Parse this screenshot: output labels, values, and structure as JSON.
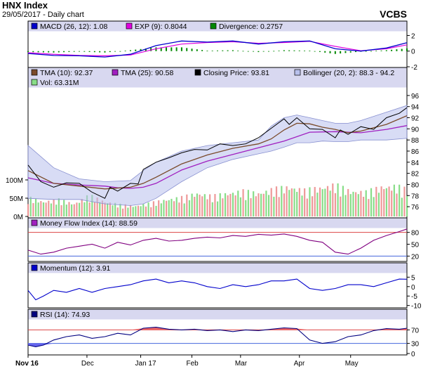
{
  "header": {
    "title": "HNX Index",
    "subtitle": "29/05/2017 - Daily chart",
    "brand": "VCBS"
  },
  "colors": {
    "panel_bg": "#ffffff",
    "legend_bg": "#d8d8f0",
    "border": "#000000",
    "macd": "#0000cc",
    "exp": "#e000e0",
    "divergence": "#008800",
    "tma10": "#7a4a2a",
    "tma25": "#a020c0",
    "close": "#000000",
    "bollinger": "#b8c0ec",
    "vol_up": "#88dd88",
    "vol_down": "#ee9999",
    "mfi": "#800080",
    "momentum": "#0000cc",
    "rsi": "#000080",
    "overbought": "#dd4444",
    "oversold": "#4466dd",
    "rsi_fill_hi": "#ee6666",
    "rsi_fill_lo": "#6666ee"
  },
  "xaxis": {
    "labels": [
      {
        "text": "Nov 16",
        "day": 0
      },
      {
        "text": "Dec",
        "day": 23
      },
      {
        "text": "Jan 17",
        "day": 44
      },
      {
        "text": "Feb",
        "day": 64
      },
      {
        "text": "Mar",
        "day": 83
      },
      {
        "text": "Apr",
        "day": 106
      },
      {
        "text": "May",
        "day": 126
      }
    ]
  },
  "chart_data": [
    {
      "panel": "macd",
      "type": "line",
      "legend": [
        {
          "label": "MACD (26, 12): 1.08",
          "icon": "blue"
        },
        {
          "label": "EXP (9): 0.8044",
          "icon": "magenta"
        },
        {
          "label": "Divergence: 0.2757",
          "icon": "green"
        }
      ],
      "ylim": [
        -2,
        2.4
      ],
      "yticks": [
        2,
        0,
        -2
      ],
      "series": [
        {
          "key": "macd",
          "x": [
            0,
            10,
            20,
            30,
            40,
            50,
            60,
            70,
            80,
            90,
            100,
            110,
            120,
            130,
            140,
            148
          ],
          "y": [
            -0.3,
            -0.55,
            -0.6,
            -0.75,
            -0.4,
            0.7,
            1.3,
            1.15,
            1.3,
            0.9,
            1.2,
            1.3,
            0.3,
            0.0,
            0.4,
            1.08
          ]
        },
        {
          "key": "exp",
          "x": [
            0,
            10,
            20,
            30,
            40,
            50,
            60,
            70,
            80,
            90,
            100,
            110,
            120,
            130,
            140,
            148
          ],
          "y": [
            -0.2,
            -0.4,
            -0.55,
            -0.6,
            -0.5,
            0.3,
            0.9,
            1.1,
            1.2,
            1.0,
            1.1,
            1.25,
            0.6,
            0.05,
            0.3,
            0.8
          ]
        }
      ]
    },
    {
      "panel": "price",
      "type": "line",
      "legend": [
        {
          "label": "TMA (10): 92.37",
          "icon": "brown"
        },
        {
          "label": "TMA (25): 90.58",
          "icon": "purple"
        },
        {
          "label": "Closing Price: 93.81",
          "icon": "black"
        },
        {
          "label": "Bollinger (20, 2): 88.3 - 94.2",
          "icon": "band"
        },
        {
          "label": "Vol: 63.31M",
          "icon": "vol"
        }
      ],
      "ylim": [
        75,
        97.5
      ],
      "yticks": [
        96,
        94,
        92,
        90,
        88,
        86,
        84,
        82,
        80,
        78,
        76
      ],
      "vol_ticks": [
        {
          "label": "100M",
          "v": 100
        },
        {
          "label": "50M",
          "v": 50
        },
        {
          "label": "0M",
          "v": 0
        }
      ],
      "close": {
        "x": [
          0,
          5,
          10,
          15,
          20,
          25,
          30,
          32,
          35,
          40,
          43,
          45,
          50,
          55,
          60,
          65,
          70,
          75,
          80,
          85,
          90,
          95,
          100,
          102,
          105,
          110,
          115,
          120,
          122,
          125,
          130,
          135,
          140,
          145,
          148
        ],
        "y": [
          83.5,
          80.5,
          79.5,
          80.3,
          80.2,
          78.6,
          77.5,
          79.5,
          78.8,
          80.2,
          80.1,
          82.7,
          84.0,
          84.8,
          85.7,
          86.3,
          86.2,
          87.3,
          87.0,
          87.3,
          88.4,
          90.1,
          91.8,
          90.8,
          92.0,
          90.0,
          89.9,
          88.4,
          89.8,
          89.0,
          90.4,
          89.9,
          92.0,
          92.8,
          93.81
        ]
      },
      "tma10": {
        "x": [
          0,
          10,
          20,
          30,
          40,
          45,
          50,
          60,
          70,
          80,
          90,
          95,
          100,
          105,
          110,
          115,
          120,
          125,
          130,
          140,
          148
        ],
        "y": [
          82.5,
          80.2,
          79.7,
          79.2,
          79.5,
          80.2,
          81.3,
          83.7,
          85.3,
          86.5,
          87.3,
          88.2,
          89.8,
          91.0,
          90.9,
          90.3,
          89.9,
          89.3,
          89.6,
          90.8,
          92.37
        ]
      },
      "tma25": {
        "x": [
          0,
          10,
          20,
          30,
          35,
          40,
          45,
          50,
          60,
          70,
          80,
          90,
          100,
          110,
          120,
          130,
          140,
          148
        ],
        "y": [
          81.2,
          80.2,
          79.9,
          79.7,
          79.4,
          79.3,
          79.5,
          80.2,
          82.6,
          84.2,
          85.4,
          86.6,
          87.8,
          89.4,
          89.5,
          89.3,
          89.9,
          90.58
        ]
      },
      "boll_upper": {
        "x": [
          0,
          10,
          20,
          30,
          40,
          45,
          50,
          60,
          70,
          80,
          90,
          95,
          100,
          105,
          110,
          115,
          120,
          125,
          130,
          140,
          148
        ],
        "y": [
          87.0,
          83.0,
          81.0,
          80.5,
          80.7,
          82.5,
          84.0,
          86.0,
          87.0,
          87.5,
          88.0,
          90.5,
          92.0,
          92.5,
          92.0,
          91.5,
          91.0,
          91.0,
          91.5,
          93.0,
          94.2
        ]
      },
      "boll_lower": {
        "x": [
          0,
          10,
          20,
          30,
          40,
          45,
          50,
          60,
          70,
          80,
          90,
          95,
          100,
          105,
          110,
          115,
          120,
          125,
          130,
          140,
          148
        ],
        "y": [
          77.5,
          77.3,
          77.3,
          76.5,
          76.2,
          76.5,
          77.5,
          80.5,
          83.0,
          84.5,
          85.5,
          86.0,
          86.7,
          87.5,
          87.5,
          87.8,
          87.7,
          87.7,
          88.0,
          88.0,
          88.3
        ]
      },
      "volume": {
        "x": [
          0,
          6,
          12,
          18,
          24,
          30,
          36,
          42,
          48,
          54,
          60,
          66,
          72,
          78,
          84,
          90,
          96,
          102,
          108,
          114,
          120,
          126,
          132,
          138,
          144,
          148
        ],
        "y": [
          45,
          35,
          40,
          30,
          50,
          35,
          28,
          25,
          32,
          40,
          45,
          55,
          48,
          55,
          60,
          55,
          65,
          70,
          62,
          68,
          75,
          60,
          58,
          70,
          72,
          63.31
        ]
      }
    },
    {
      "panel": "mfi",
      "type": "line",
      "legend": [
        {
          "label": "Money Flow Index (14): 88.59",
          "icon": "purple"
        }
      ],
      "ylim": [
        10,
        90
      ],
      "yticks": [
        80,
        50,
        20
      ],
      "overbought": 80,
      "oversold": 20,
      "series": [
        {
          "key": "mfi",
          "x": [
            0,
            5,
            10,
            15,
            20,
            25,
            30,
            35,
            40,
            45,
            50,
            55,
            60,
            65,
            70,
            75,
            80,
            85,
            90,
            95,
            100,
            105,
            110,
            115,
            120,
            125,
            130,
            135,
            140,
            145,
            148
          ],
          "y": [
            35,
            25,
            30,
            40,
            45,
            50,
            40,
            55,
            48,
            60,
            65,
            58,
            60,
            65,
            68,
            66,
            72,
            70,
            75,
            73,
            76,
            70,
            60,
            55,
            30,
            25,
            40,
            60,
            72,
            82,
            88.59
          ]
        }
      ]
    },
    {
      "panel": "momentum",
      "type": "line",
      "legend": [
        {
          "label": "Momentum (12): 3.91",
          "icon": "blue"
        }
      ],
      "ylim": [
        -10.5,
        7
      ],
      "yticks": [
        5,
        0,
        -5,
        -10
      ],
      "series": [
        {
          "key": "momentum",
          "x": [
            0,
            3,
            6,
            10,
            15,
            20,
            25,
            30,
            35,
            40,
            45,
            50,
            55,
            60,
            65,
            70,
            75,
            80,
            85,
            90,
            95,
            100,
            105,
            110,
            115,
            120,
            125,
            130,
            135,
            140,
            145,
            148
          ],
          "y": [
            -2,
            -7,
            -5,
            -2,
            -3,
            -1,
            -3,
            -1,
            0,
            1,
            3,
            4,
            2,
            3,
            2,
            0,
            -1,
            1,
            0,
            1,
            3,
            3,
            4,
            -1,
            -2,
            -1,
            1,
            1,
            0,
            2,
            4,
            3.91
          ]
        }
      ]
    },
    {
      "panel": "rsi",
      "type": "line",
      "legend": [
        {
          "label": "RSI (14): 74.93",
          "icon": "navy"
        }
      ],
      "ylim": [
        0,
        100
      ],
      "yticks": [
        70,
        30,
        0
      ],
      "overbought": 70,
      "oversold": 30,
      "series": [
        {
          "key": "rsi",
          "x": [
            0,
            3,
            6,
            10,
            15,
            20,
            25,
            30,
            35,
            40,
            45,
            50,
            55,
            60,
            65,
            70,
            75,
            80,
            85,
            90,
            95,
            100,
            105,
            110,
            115,
            120,
            125,
            130,
            135,
            140,
            145,
            148
          ],
          "y": [
            25,
            20,
            25,
            40,
            50,
            55,
            45,
            50,
            60,
            55,
            75,
            78,
            72,
            70,
            72,
            68,
            70,
            65,
            70,
            68,
            72,
            76,
            74,
            40,
            30,
            35,
            50,
            55,
            68,
            74,
            72,
            74.93
          ]
        }
      ]
    }
  ]
}
